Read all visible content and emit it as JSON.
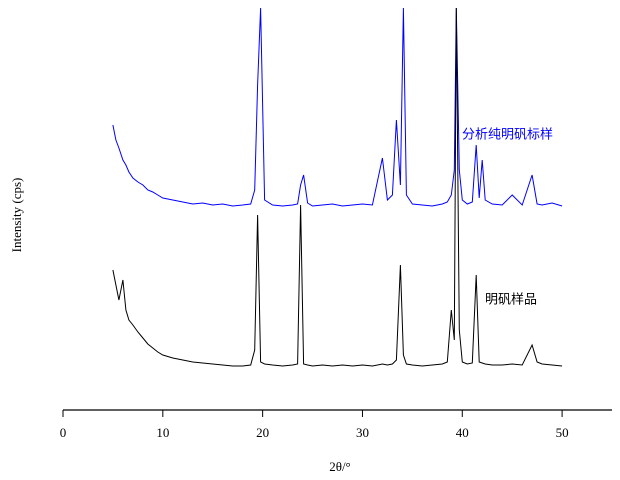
{
  "chart_data": {
    "type": "line",
    "xlabel": "2θ/°",
    "ylabel": "Intensity (cps)",
    "xlim": [
      0,
      55
    ],
    "xticks": [
      0,
      10,
      20,
      30,
      40,
      50
    ],
    "ylim": [
      0,
      410
    ],
    "x": [
      5.0,
      5.3,
      5.6,
      6.0,
      6.3,
      6.6,
      7.0,
      7.5,
      8.0,
      8.5,
      9.0,
      9.5,
      10,
      11,
      12,
      13,
      14,
      15,
      16,
      17,
      18,
      18.8,
      19.2,
      19.5,
      19.8,
      20.2,
      21,
      22,
      23,
      23.5,
      23.8,
      24.1,
      24.5,
      25,
      26,
      27,
      28,
      29,
      30,
      31,
      32,
      32.5,
      33,
      33.4,
      33.8,
      34.1,
      34.4,
      35,
      36,
      37,
      38,
      38.5,
      38.9,
      39.2,
      39.4,
      39.7,
      40,
      40.5,
      41,
      41.4,
      41.7,
      42,
      42.3,
      43,
      44,
      45,
      46,
      47,
      47.5,
      48,
      49,
      50
    ],
    "series": [
      {
        "name": "分析纯明矾标样",
        "color": "#0000ff",
        "values": [
          285,
          270,
          262,
          250,
          245,
          238,
          232,
          228,
          225,
          220,
          218,
          215,
          212,
          210,
          208,
          206,
          207,
          205,
          206,
          204,
          205,
          206,
          220,
          325,
          402,
          210,
          205,
          204,
          205,
          206,
          225,
          235,
          207,
          204,
          205,
          206,
          204,
          205,
          206,
          205,
          252,
          210,
          215,
          290,
          225,
          402,
          215,
          206,
          205,
          204,
          206,
          208,
          215,
          240,
          402,
          240,
          210,
          206,
          208,
          265,
          212,
          250,
          210,
          206,
          205,
          215,
          205,
          235,
          206,
          205,
          207,
          204
        ]
      },
      {
        "name": "明矾样品",
        "color": "#000000",
        "values": [
          140,
          125,
          110,
          130,
          100,
          90,
          85,
          78,
          72,
          66,
          62,
          58,
          55,
          52,
          50,
          48,
          47,
          46,
          45,
          44,
          44,
          45,
          60,
          195,
          48,
          46,
          45,
          44,
          45,
          46,
          205,
          46,
          45,
          44,
          45,
          44,
          45,
          44,
          45,
          44,
          46,
          45,
          46,
          50,
          145,
          55,
          46,
          45,
          44,
          45,
          46,
          48,
          100,
          70,
          402,
          80,
          48,
          46,
          47,
          135,
          48,
          47,
          46,
          45,
          45,
          46,
          45,
          65,
          48,
          46,
          45,
          44
        ]
      }
    ]
  }
}
